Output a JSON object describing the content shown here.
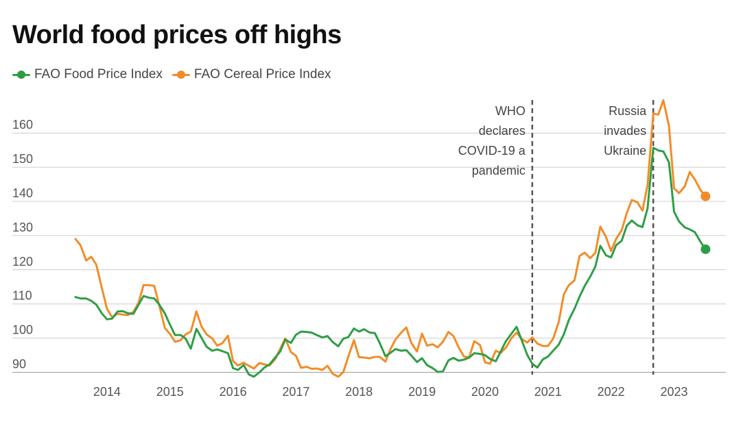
{
  "title": "World food prices off highs",
  "legend": [
    {
      "label": "FAO Food Price Index",
      "color": "#2e9e46"
    },
    {
      "label": "FAO Cereal Price Index",
      "color": "#f28c28"
    }
  ],
  "chart_data": {
    "type": "line",
    "x_range": [
      2013.0,
      2023.17
    ],
    "ylim": [
      88,
      168
    ],
    "yticks": [
      90,
      100,
      110,
      120,
      130,
      140,
      150,
      160
    ],
    "xticks": [
      "2014",
      "2015",
      "2016",
      "2017",
      "2018",
      "2019",
      "2020",
      "2021",
      "2022",
      "2023"
    ],
    "grid": true,
    "legend_position": "top-left",
    "annotations": [
      {
        "x": 2020.25,
        "lines": [
          "WHO",
          "declares",
          "COVID-19 a",
          "pandemic"
        ]
      },
      {
        "x": 2022.17,
        "lines": [
          "Russia",
          "invades",
          "Ukraine"
        ]
      }
    ],
    "series": [
      {
        "name": "FAO Food Price Index",
        "color": "#2e9e46",
        "values": [
          [
            2013.0,
            112.0
          ],
          [
            2013.08,
            111.6
          ],
          [
            2013.17,
            111.6
          ],
          [
            2013.25,
            110.9
          ],
          [
            2013.33,
            109.8
          ],
          [
            2013.42,
            107.2
          ],
          [
            2013.5,
            105.5
          ],
          [
            2013.58,
            105.7
          ],
          [
            2013.67,
            107.8
          ],
          [
            2013.75,
            107.9
          ],
          [
            2013.83,
            107.3
          ],
          [
            2013.92,
            107.1
          ],
          [
            2014.0,
            109.7
          ],
          [
            2014.08,
            112.3
          ],
          [
            2014.17,
            111.8
          ],
          [
            2014.25,
            111.6
          ],
          [
            2014.33,
            109.8
          ],
          [
            2014.42,
            107.2
          ],
          [
            2014.5,
            103.9
          ],
          [
            2014.58,
            100.9
          ],
          [
            2014.67,
            100.9
          ],
          [
            2014.75,
            99.8
          ],
          [
            2014.83,
            96.9
          ],
          [
            2014.92,
            102.7
          ],
          [
            2015.0,
            100.1
          ],
          [
            2015.08,
            97.5
          ],
          [
            2015.17,
            96.3
          ],
          [
            2015.25,
            96.7
          ],
          [
            2015.33,
            96.2
          ],
          [
            2015.42,
            95.6
          ],
          [
            2015.5,
            91.2
          ],
          [
            2015.58,
            90.7
          ],
          [
            2015.67,
            92.1
          ],
          [
            2015.75,
            89.4
          ],
          [
            2015.83,
            88.7
          ],
          [
            2015.92,
            90.0
          ],
          [
            2016.0,
            91.4
          ],
          [
            2016.08,
            92.3
          ],
          [
            2016.17,
            94.3
          ],
          [
            2016.25,
            96.1
          ],
          [
            2016.33,
            99.6
          ],
          [
            2016.42,
            98.6
          ],
          [
            2016.5,
            101.0
          ],
          [
            2016.58,
            101.9
          ],
          [
            2016.67,
            101.8
          ],
          [
            2016.75,
            101.6
          ],
          [
            2016.83,
            100.9
          ],
          [
            2016.92,
            100.2
          ],
          [
            2017.0,
            100.6
          ],
          [
            2017.08,
            98.9
          ],
          [
            2017.17,
            97.6
          ],
          [
            2017.25,
            99.8
          ],
          [
            2017.33,
            100.3
          ],
          [
            2017.42,
            102.8
          ],
          [
            2017.5,
            101.9
          ],
          [
            2017.58,
            102.6
          ],
          [
            2017.67,
            101.6
          ],
          [
            2017.75,
            101.5
          ],
          [
            2017.83,
            98.5
          ],
          [
            2017.92,
            94.7
          ],
          [
            2018.0,
            95.7
          ],
          [
            2018.08,
            96.8
          ],
          [
            2018.17,
            96.3
          ],
          [
            2018.25,
            96.5
          ],
          [
            2018.33,
            94.9
          ],
          [
            2018.42,
            93.0
          ],
          [
            2018.5,
            94.1
          ],
          [
            2018.58,
            92.1
          ],
          [
            2018.67,
            91.2
          ],
          [
            2018.75,
            90.1
          ],
          [
            2018.83,
            90.2
          ],
          [
            2018.92,
            93.5
          ],
          [
            2019.0,
            94.2
          ],
          [
            2019.08,
            93.4
          ],
          [
            2019.17,
            93.7
          ],
          [
            2019.25,
            94.3
          ],
          [
            2019.33,
            95.6
          ],
          [
            2019.42,
            95.4
          ],
          [
            2019.5,
            95.0
          ],
          [
            2019.58,
            93.9
          ],
          [
            2019.67,
            93.2
          ],
          [
            2019.75,
            96.1
          ],
          [
            2019.83,
            99.1
          ],
          [
            2019.92,
            101.3
          ],
          [
            2020.0,
            103.3
          ],
          [
            2020.08,
            99.5
          ],
          [
            2020.17,
            95.1
          ],
          [
            2020.25,
            92.5
          ],
          [
            2020.33,
            91.4
          ],
          [
            2020.42,
            93.8
          ],
          [
            2020.5,
            94.6
          ],
          [
            2020.58,
            96.3
          ],
          [
            2020.67,
            98.1
          ],
          [
            2020.75,
            101.1
          ],
          [
            2020.83,
            105.3
          ],
          [
            2020.92,
            108.6
          ],
          [
            2021.0,
            112.1
          ],
          [
            2021.08,
            115.2
          ],
          [
            2021.17,
            118.0
          ],
          [
            2021.25,
            120.9
          ],
          [
            2021.33,
            127.0
          ],
          [
            2021.42,
            124.2
          ],
          [
            2021.5,
            123.6
          ],
          [
            2021.58,
            127.2
          ],
          [
            2021.67,
            128.5
          ],
          [
            2021.75,
            132.9
          ],
          [
            2021.83,
            134.4
          ],
          [
            2021.92,
            133.0
          ],
          [
            2022.0,
            132.5
          ],
          [
            2022.08,
            138.0
          ],
          [
            2022.17,
            155.7
          ],
          [
            2022.25,
            154.9
          ],
          [
            2022.33,
            154.6
          ],
          [
            2022.42,
            151.4
          ],
          [
            2022.5,
            137.0
          ],
          [
            2022.58,
            134.1
          ],
          [
            2022.67,
            132.4
          ],
          [
            2022.75,
            131.8
          ],
          [
            2022.83,
            131.0
          ],
          [
            2022.92,
            128.2
          ],
          [
            2023.0,
            126.0
          ]
        ]
      },
      {
        "name": "FAO Cereal Price Index",
        "color": "#f28c28",
        "values": [
          [
            2013.0,
            129.0
          ],
          [
            2013.08,
            127.2
          ],
          [
            2013.17,
            122.7
          ],
          [
            2013.25,
            123.8
          ],
          [
            2013.33,
            121.5
          ],
          [
            2013.42,
            114.5
          ],
          [
            2013.5,
            108.6
          ],
          [
            2013.58,
            106.1
          ],
          [
            2013.67,
            107.1
          ],
          [
            2013.75,
            106.9
          ],
          [
            2013.83,
            106.7
          ],
          [
            2013.92,
            107.7
          ],
          [
            2014.0,
            110.3
          ],
          [
            2014.08,
            115.5
          ],
          [
            2014.17,
            115.5
          ],
          [
            2014.25,
            115.3
          ],
          [
            2014.33,
            109.6
          ],
          [
            2014.42,
            102.9
          ],
          [
            2014.5,
            101.2
          ],
          [
            2014.58,
            98.9
          ],
          [
            2014.67,
            99.4
          ],
          [
            2014.75,
            101.1
          ],
          [
            2014.83,
            101.9
          ],
          [
            2014.92,
            107.8
          ],
          [
            2015.0,
            103.4
          ],
          [
            2015.08,
            101.1
          ],
          [
            2015.17,
            99.9
          ],
          [
            2015.25,
            97.8
          ],
          [
            2015.33,
            98.5
          ],
          [
            2015.42,
            100.7
          ],
          [
            2015.5,
            93.3
          ],
          [
            2015.58,
            92.0
          ],
          [
            2015.67,
            92.8
          ],
          [
            2015.75,
            91.9
          ],
          [
            2015.83,
            91.1
          ],
          [
            2015.92,
            92.7
          ],
          [
            2016.0,
            92.3
          ],
          [
            2016.08,
            92.0
          ],
          [
            2016.17,
            93.8
          ],
          [
            2016.25,
            96.9
          ],
          [
            2016.33,
            99.9
          ],
          [
            2016.42,
            95.9
          ],
          [
            2016.5,
            94.8
          ],
          [
            2016.58,
            91.3
          ],
          [
            2016.67,
            91.6
          ],
          [
            2016.75,
            91.0
          ],
          [
            2016.83,
            91.1
          ],
          [
            2016.92,
            90.7
          ],
          [
            2017.0,
            91.9
          ],
          [
            2017.08,
            89.6
          ],
          [
            2017.17,
            88.7
          ],
          [
            2017.25,
            90.0
          ],
          [
            2017.33,
            94.6
          ],
          [
            2017.42,
            99.4
          ],
          [
            2017.5,
            94.4
          ],
          [
            2017.58,
            94.3
          ],
          [
            2017.67,
            94.1
          ],
          [
            2017.75,
            94.5
          ],
          [
            2017.83,
            94.5
          ],
          [
            2017.92,
            93.1
          ],
          [
            2018.0,
            96.8
          ],
          [
            2018.08,
            99.6
          ],
          [
            2018.17,
            101.6
          ],
          [
            2018.25,
            103.1
          ],
          [
            2018.33,
            98.6
          ],
          [
            2018.42,
            96.1
          ],
          [
            2018.5,
            101.3
          ],
          [
            2018.58,
            97.8
          ],
          [
            2018.67,
            98.2
          ],
          [
            2018.75,
            97.3
          ],
          [
            2018.83,
            98.9
          ],
          [
            2018.92,
            101.8
          ],
          [
            2019.0,
            100.6
          ],
          [
            2019.08,
            97.3
          ],
          [
            2019.17,
            94.5
          ],
          [
            2019.25,
            94.5
          ],
          [
            2019.33,
            99.1
          ],
          [
            2019.42,
            98.0
          ],
          [
            2019.5,
            92.9
          ],
          [
            2019.58,
            92.5
          ],
          [
            2019.67,
            96.3
          ],
          [
            2019.75,
            95.7
          ],
          [
            2019.83,
            97.2
          ],
          [
            2019.92,
            100.0
          ],
          [
            2020.0,
            101.6
          ],
          [
            2020.08,
            99.8
          ],
          [
            2020.17,
            98.7
          ],
          [
            2020.25,
            100.2
          ],
          [
            2020.33,
            98.4
          ],
          [
            2020.42,
            97.7
          ],
          [
            2020.5,
            97.7
          ],
          [
            2020.58,
            99.8
          ],
          [
            2020.67,
            104.7
          ],
          [
            2020.75,
            112.8
          ],
          [
            2020.83,
            115.5
          ],
          [
            2020.92,
            116.9
          ],
          [
            2021.0,
            124.0
          ],
          [
            2021.08,
            125.0
          ],
          [
            2021.17,
            123.4
          ],
          [
            2021.25,
            124.9
          ],
          [
            2021.33,
            132.6
          ],
          [
            2021.42,
            129.6
          ],
          [
            2021.5,
            125.5
          ],
          [
            2021.58,
            129.0
          ],
          [
            2021.67,
            131.6
          ],
          [
            2021.75,
            136.6
          ],
          [
            2021.83,
            140.4
          ],
          [
            2021.92,
            139.7
          ],
          [
            2022.0,
            137.3
          ],
          [
            2022.08,
            144.8
          ],
          [
            2022.17,
            165.7
          ],
          [
            2022.25,
            165.4
          ],
          [
            2022.33,
            169.6
          ],
          [
            2022.42,
            162.0
          ],
          [
            2022.5,
            143.8
          ],
          [
            2022.58,
            142.4
          ],
          [
            2022.67,
            144.4
          ],
          [
            2022.75,
            148.6
          ],
          [
            2022.83,
            146.4
          ],
          [
            2022.92,
            143.3
          ],
          [
            2023.0,
            141.5
          ]
        ]
      }
    ]
  }
}
